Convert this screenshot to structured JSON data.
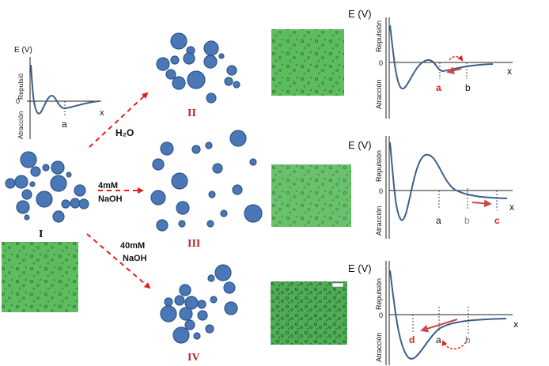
{
  "colors": {
    "drop_fill": "#4a78b6",
    "drop_stroke": "#2e5587",
    "curve": "#3b5f8e",
    "arrow_red": "#e02020",
    "shift_arrow": "#c94a4a",
    "roman": "#c0262a",
    "photo_green": "#55b85a"
  },
  "states": {
    "initial": "I",
    "water": "II",
    "naoh_4mm": "III",
    "naoh_40mm": "IV"
  },
  "conditions": {
    "water": "H₂O",
    "naoh_4mm_line1": "4mM",
    "naoh_4mm_line2": "NaOH",
    "naoh_40mm_line1": "40mM",
    "naoh_40mm_line2": "NaOH"
  },
  "potential_plots": {
    "energy_label": "E (V)",
    "energy_label_small": "E (V)",
    "repulsion_label": "Repulsión",
    "repulsion_label_small": "Repulsió",
    "attraction_label": "Atracción",
    "zero_label": "0",
    "x_label": "x",
    "marks": {
      "a": "a",
      "b": "b",
      "c": "c",
      "d": "d"
    }
  }
}
